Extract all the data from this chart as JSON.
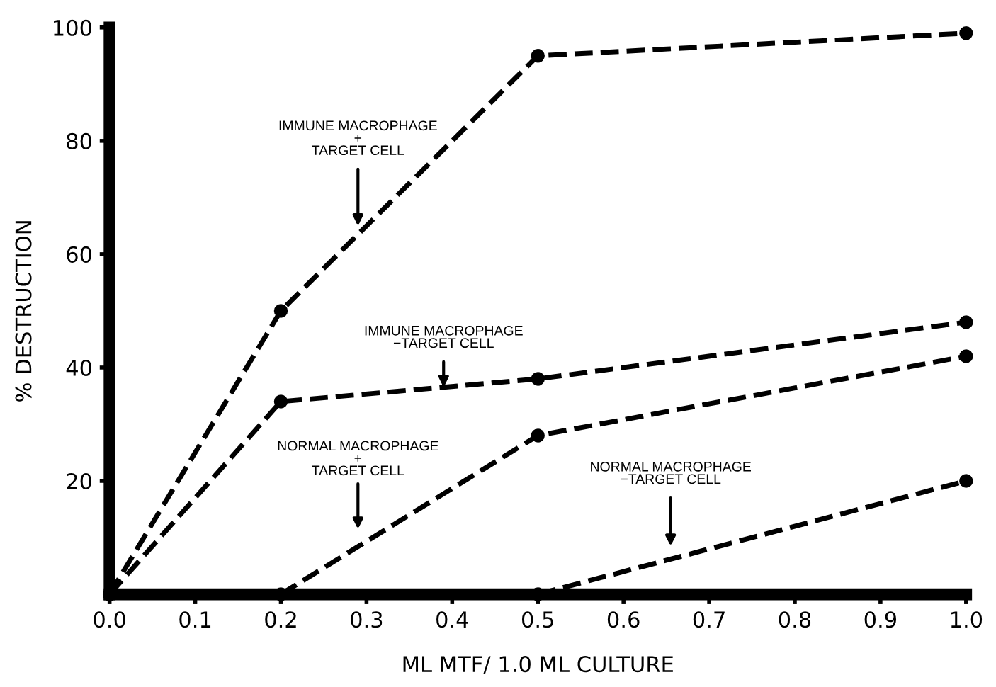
{
  "chart_data": {
    "type": "line",
    "xlabel": "ML MTF/ 1.0 ML CULTURE",
    "ylabel": "% DESTRUCTION",
    "xlim": [
      0,
      1.0
    ],
    "xticks": [
      {
        "value": 0,
        "label": "0.0"
      },
      0.1,
      0.2,
      0.3,
      0.4,
      0.5,
      0.6,
      0.7,
      0.8,
      0.9,
      {
        "value": 1.0,
        "label": "1.0"
      }
    ],
    "ylim": [
      0,
      100
    ],
    "yticks": [
      20,
      40,
      60,
      80,
      100
    ],
    "marker": "circle",
    "line_style": "dashed",
    "grid": false,
    "legend": false,
    "series": [
      {
        "color": "#000000",
        "x": [
          0,
          0.2,
          0.5,
          1.0
        ],
        "values": [
          0,
          50,
          95,
          99
        ]
      },
      {
        "color": "#000000",
        "x": [
          0,
          0.2,
          0.5,
          1.0
        ],
        "values": [
          0,
          34,
          38,
          48
        ]
      },
      {
        "color": "#000000",
        "x": [
          0.2,
          0.5,
          1.0
        ],
        "values": [
          0,
          28,
          42
        ]
      },
      {
        "color": "#000000",
        "x": [
          0.5,
          1.0
        ],
        "values": [
          0,
          20
        ]
      }
    ],
    "annotations": [
      "IMMUNE MACROPHAGE\n+\nTARGET CELL",
      "IMMUNE MACROPHAGE\n−TARGET CELL",
      "NORMAL MACROPHAGE\n+\nTARGET CELL",
      "NORMAL MACROPHAGE\n−TARGET CELL"
    ]
  }
}
